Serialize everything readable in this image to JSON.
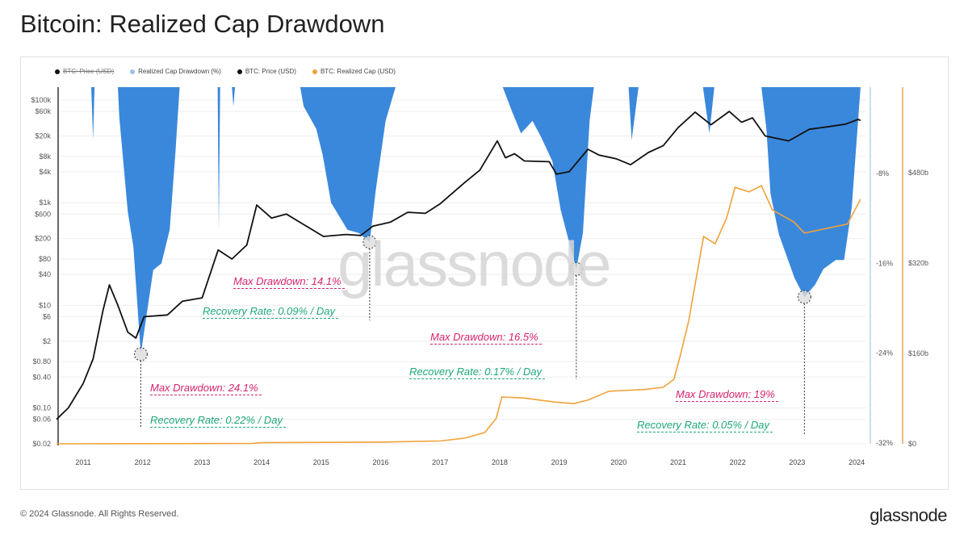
{
  "title": "Bitcoin: Realized Cap Drawdown",
  "legend": [
    {
      "label": "BTC: Price (USD)",
      "color": "#111111",
      "hidden": true
    },
    {
      "label": "Realized Cap Drawdown (%)",
      "color": "#9cc3ea"
    },
    {
      "label": "BTC: Price (USD)",
      "color": "#111111"
    },
    {
      "label": "BTC: Realized Cap (USD)",
      "color": "#f0a23a"
    }
  ],
  "watermark": "glassnode",
  "footer": {
    "copyright": "© 2024 Glassnode. All Rights Reserved.",
    "logo": "glassnode"
  },
  "annotations": [
    {
      "max_drawdown": "Max Drawdown: 24.1%",
      "recovery_rate": "Recovery Rate: 0.22% / Day",
      "date": "2011-12-20",
      "value": -24.1
    },
    {
      "max_drawdown": "Max Drawdown: 14.1%",
      "recovery_rate": "Recovery Rate: 0.09% / Day",
      "date": "2015-10-25",
      "value": -14.1
    },
    {
      "max_drawdown": "Max Drawdown: 16.5%",
      "recovery_rate": "Recovery Rate: 0.17% / Day",
      "date": "2019-04-15",
      "value": -16.5
    },
    {
      "max_drawdown": "Max Drawdown: 19%",
      "recovery_rate": "Recovery Rate: 0.05% / Day",
      "date": "2023-02-15",
      "value": -19
    }
  ],
  "chart_data": {
    "type": "line",
    "title": "Bitcoin: Realized Cap Drawdown",
    "grid": true,
    "legend_position": "top-left",
    "x_ticks": [
      "2011",
      "2012",
      "2013",
      "2014",
      "2015",
      "2016",
      "2017",
      "2018",
      "2019",
      "2020",
      "2021",
      "2022",
      "2023",
      "2024"
    ],
    "y_left": {
      "scale": "log",
      "range": [
        0.02,
        100000
      ],
      "ticks": [
        "$100k",
        "$60k",
        "$20k",
        "$8k",
        "$4k",
        "$1k",
        "$600",
        "$200",
        "$80",
        "$40",
        "$10",
        "$6",
        "$2",
        "$0.80",
        "$0.40",
        "$0.10",
        "$0.06",
        "$0.02"
      ],
      "tick_values": [
        100000,
        60000,
        20000,
        8000,
        4000,
        1000,
        600,
        200,
        80,
        40,
        10,
        6,
        2,
        0.8,
        0.4,
        0.1,
        0.06,
        0.02
      ]
    },
    "y_right_drawdown": {
      "range": [
        -32,
        0
      ],
      "ticks": [
        "-8%",
        "-16%",
        "-24%",
        "-32%"
      ],
      "tick_values": [
        -8,
        -16,
        -24,
        -32
      ]
    },
    "y_right_cap": {
      "range": [
        0,
        640
      ],
      "unit": "billion USD",
      "ticks": [
        "$480b",
        "$320b",
        "$160b",
        "$0"
      ],
      "tick_values": [
        480,
        320,
        160,
        0
      ]
    },
    "series": [
      {
        "name": "Realized Cap Drawdown (%)",
        "type": "area",
        "color": "#3a88dc",
        "axis": "drawdown",
        "points": [
          [
            "2010-07-15",
            0
          ],
          [
            "2011-02-20",
            0
          ],
          [
            "2011-03-01",
            -5
          ],
          [
            "2011-03-10",
            0
          ],
          [
            "2011-08-01",
            0
          ],
          [
            "2011-08-10",
            -3
          ],
          [
            "2011-10-01",
            -11.4
          ],
          [
            "2011-11-05",
            -14.5
          ],
          [
            "2011-12-20",
            -24.1
          ],
          [
            "2012-03-05",
            -16.6
          ],
          [
            "2012-04-25",
            -16
          ],
          [
            "2012-06-15",
            -13
          ],
          [
            "2012-07-20",
            -6
          ],
          [
            "2012-08-15",
            0
          ],
          [
            "2013-04-05",
            0
          ],
          [
            "2013-04-12",
            -13
          ],
          [
            "2013-04-20",
            0
          ],
          [
            "2013-07-01",
            0
          ],
          [
            "2013-07-10",
            -2
          ],
          [
            "2013-07-20",
            0
          ],
          [
            "2014-08-25",
            0
          ],
          [
            "2014-09-15",
            -2
          ],
          [
            "2014-12-01",
            -4
          ],
          [
            "2015-01-10",
            -6.3
          ],
          [
            "2015-03-01",
            -10.6
          ],
          [
            "2015-06-10",
            -13
          ],
          [
            "2015-08-20",
            -13.3
          ],
          [
            "2015-10-25",
            -14.1
          ],
          [
            "2015-12-01",
            -9.5
          ],
          [
            "2016-02-01",
            -3.3
          ],
          [
            "2016-04-01",
            0
          ],
          [
            "2018-01-20",
            0
          ],
          [
            "2018-03-20",
            -2.6
          ],
          [
            "2018-05-10",
            -4.4
          ],
          [
            "2018-07-20",
            -3.3
          ],
          [
            "2018-09-10",
            -4.7
          ],
          [
            "2018-11-20",
            -6.9
          ],
          [
            "2019-01-10",
            -11.2
          ],
          [
            "2019-03-01",
            -14.1
          ],
          [
            "2019-04-15",
            -16.5
          ],
          [
            "2019-05-25",
            -13.3
          ],
          [
            "2019-07-05",
            -3.3
          ],
          [
            "2019-08-01",
            0
          ],
          [
            "2020-03-01",
            0
          ],
          [
            "2020-03-20",
            -5
          ],
          [
            "2020-05-01",
            0
          ],
          [
            "2021-06-01",
            0
          ],
          [
            "2021-07-10",
            -4.4
          ],
          [
            "2021-08-10",
            0
          ],
          [
            "2022-05-25",
            0
          ],
          [
            "2022-06-25",
            -4
          ],
          [
            "2022-07-20",
            -9.8
          ],
          [
            "2022-09-10",
            -13.4
          ],
          [
            "2022-12-15",
            -17.3
          ],
          [
            "2023-02-15",
            -19
          ],
          [
            "2023-04-20",
            -17.9
          ],
          [
            "2023-06-10",
            -16.5
          ],
          [
            "2023-08-25",
            -15.7
          ],
          [
            "2023-10-15",
            -15.7
          ],
          [
            "2023-12-01",
            -11
          ],
          [
            "2024-01-01",
            -5
          ],
          [
            "2024-01-25",
            0
          ]
        ]
      },
      {
        "name": "BTC: Price (USD)",
        "type": "line",
        "color": "#111111",
        "axis": "left",
        "points": [
          [
            "2010-07-20",
            0.06
          ],
          [
            "2010-10-01",
            0.1
          ],
          [
            "2011-01-01",
            0.3
          ],
          [
            "2011-03-01",
            0.9
          ],
          [
            "2011-05-01",
            8
          ],
          [
            "2011-06-10",
            25
          ],
          [
            "2011-08-01",
            10
          ],
          [
            "2011-10-01",
            3
          ],
          [
            "2011-11-20",
            2.3
          ],
          [
            "2012-01-10",
            6
          ],
          [
            "2012-06-01",
            6.5
          ],
          [
            "2012-09-01",
            12
          ],
          [
            "2013-01-01",
            14
          ],
          [
            "2013-04-08",
            120
          ],
          [
            "2013-07-01",
            80
          ],
          [
            "2013-10-01",
            150
          ],
          [
            "2013-12-01",
            900
          ],
          [
            "2014-03-01",
            500
          ],
          [
            "2014-06-01",
            600
          ],
          [
            "2014-09-01",
            400
          ],
          [
            "2015-01-15",
            220
          ],
          [
            "2015-06-01",
            240
          ],
          [
            "2015-09-01",
            230
          ],
          [
            "2015-11-15",
            350
          ],
          [
            "2016-03-01",
            420
          ],
          [
            "2016-06-15",
            650
          ],
          [
            "2016-10-01",
            620
          ],
          [
            "2017-01-01",
            950
          ],
          [
            "2017-06-01",
            2500
          ],
          [
            "2017-09-01",
            4300
          ],
          [
            "2017-12-17",
            16000
          ],
          [
            "2018-02-06",
            7500
          ],
          [
            "2018-04-01",
            9000
          ],
          [
            "2018-06-01",
            6500
          ],
          [
            "2018-11-01",
            6300
          ],
          [
            "2018-12-15",
            3600
          ],
          [
            "2019-03-01",
            4000
          ],
          [
            "2019-06-25",
            11000
          ],
          [
            "2019-09-01",
            8500
          ],
          [
            "2019-12-15",
            7200
          ],
          [
            "2020-03-13",
            5500
          ],
          [
            "2020-07-01",
            9500
          ],
          [
            "2020-10-01",
            13000
          ],
          [
            "2020-12-31",
            29000
          ],
          [
            "2021-04-14",
            58000
          ],
          [
            "2021-07-20",
            33000
          ],
          [
            "2021-11-10",
            60000
          ],
          [
            "2022-01-25",
            37000
          ],
          [
            "2022-04-01",
            45000
          ],
          [
            "2022-06-18",
            20000
          ],
          [
            "2022-11-10",
            16000
          ],
          [
            "2023-03-15",
            27000
          ],
          [
            "2023-07-01",
            30000
          ],
          [
            "2023-10-25",
            34000
          ],
          [
            "2024-01-10",
            42000
          ],
          [
            "2024-01-25",
            40000
          ]
        ]
      },
      {
        "name": "BTC: Realized Cap (USD)",
        "type": "line",
        "color": "#f0a23a",
        "axis": "cap",
        "points": [
          [
            "2010-07-20",
            0
          ],
          [
            "2013-11-01",
            0.5
          ],
          [
            "2014-01-01",
            2
          ],
          [
            "2016-01-01",
            3
          ],
          [
            "2017-01-01",
            5
          ],
          [
            "2017-06-01",
            10
          ],
          [
            "2017-10-01",
            20
          ],
          [
            "2017-12-10",
            45
          ],
          [
            "2018-01-15",
            83
          ],
          [
            "2018-06-01",
            81
          ],
          [
            "2018-12-01",
            74
          ],
          [
            "2019-04-01",
            71
          ],
          [
            "2019-07-01",
            78
          ],
          [
            "2019-11-01",
            93
          ],
          [
            "2020-06-01",
            96
          ],
          [
            "2020-10-01",
            100
          ],
          [
            "2020-12-05",
            114
          ],
          [
            "2021-01-15",
            157
          ],
          [
            "2021-03-05",
            218
          ],
          [
            "2021-06-05",
            367
          ],
          [
            "2021-08-15",
            354
          ],
          [
            "2021-10-25",
            400
          ],
          [
            "2021-12-15",
            454
          ],
          [
            "2022-03-10",
            446
          ],
          [
            "2022-05-25",
            457
          ],
          [
            "2022-08-01",
            414
          ],
          [
            "2022-12-10",
            393
          ],
          [
            "2023-02-15",
            373
          ],
          [
            "2023-11-05",
            389
          ],
          [
            "2024-01-25",
            433
          ]
        ]
      }
    ]
  }
}
